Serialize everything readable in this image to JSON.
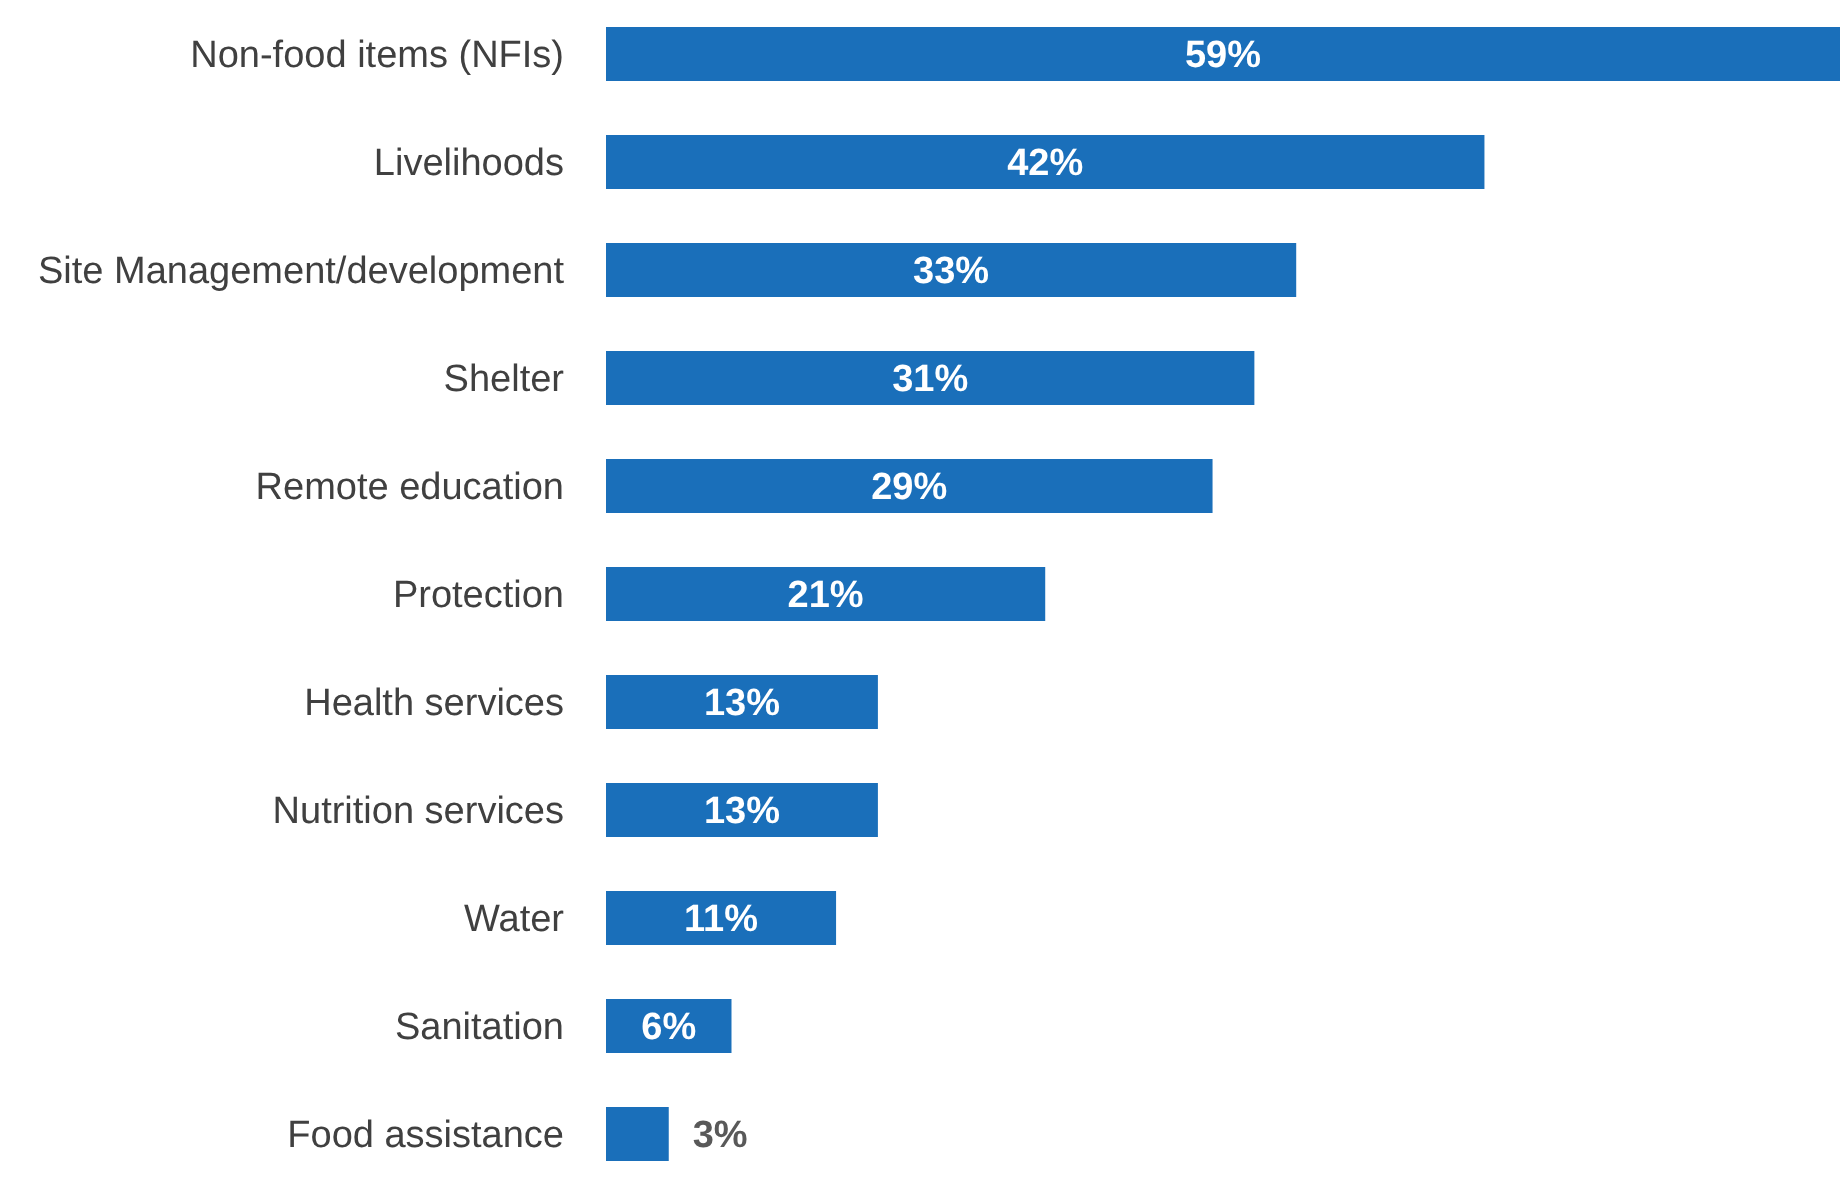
{
  "chart_data": {
    "type": "bar",
    "orientation": "horizontal",
    "categories": [
      "Non-food items (NFIs)",
      "Livelihoods",
      "Site Management/development",
      "Shelter",
      "Remote education",
      "Protection",
      "Health services",
      "Nutrition services",
      "Water",
      "Sanitation",
      "Food assistance"
    ],
    "values": [
      59,
      42,
      33,
      31,
      29,
      21,
      13,
      13,
      11,
      6,
      3
    ],
    "value_labels": [
      "59%",
      "42%",
      "33%",
      "31%",
      "29%",
      "21%",
      "13%",
      "13%",
      "11%",
      "6%",
      "3%"
    ],
    "color": "#1a6fba",
    "tick_labels": "y"
  }
}
